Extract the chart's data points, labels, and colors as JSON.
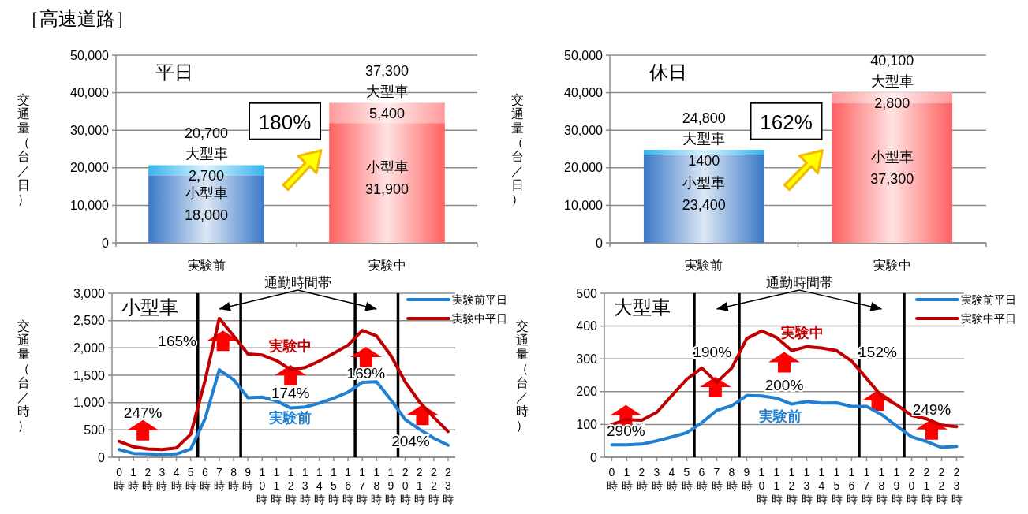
{
  "chart_data": [
    {
      "type": "bar",
      "title": "平日",
      "ylabel": "交通量（台／日）",
      "categories": [
        "実験前",
        "実験中"
      ],
      "stacked": true,
      "series": [
        {
          "name": "小型車",
          "colors": [
            "#3a78c8",
            "#ff6060"
          ],
          "values": [
            18000,
            31900
          ],
          "value_labels": [
            "18,000",
            "31,900"
          ]
        },
        {
          "name": "大型車",
          "colors": [
            "#34b4ec",
            "#ff9a9a"
          ],
          "values": [
            2700,
            5400
          ],
          "value_labels": [
            "2,700",
            "5,400"
          ]
        }
      ],
      "totals": [
        "20,700",
        "37,300"
      ],
      "ylim": [
        0,
        50000
      ],
      "yticks": [
        0,
        {
          "value": 10000,
          "label": "10,000"
        },
        {
          "value": 20000,
          "label": "20,000"
        },
        {
          "value": 30000,
          "label": "30,000"
        },
        {
          "value": 40000,
          "label": "40,000"
        },
        {
          "value": 50000,
          "label": "50,000"
        }
      ],
      "grid": "y",
      "annotations": [
        "［高速道路］",
        "180%"
      ]
    },
    {
      "type": "bar",
      "title": "休日",
      "ylabel": "交通量（台／日）",
      "categories": [
        "実験前",
        "実験中"
      ],
      "stacked": true,
      "series": [
        {
          "name": "小型車",
          "colors": [
            "#3a78c8",
            "#ff6060"
          ],
          "values": [
            23400,
            37300
          ],
          "value_labels": [
            "23,400",
            "37,300"
          ]
        },
        {
          "name": "大型車",
          "colors": [
            "#34b4ec",
            "#ff9a9a"
          ],
          "values": [
            1400,
            2800
          ],
          "value_labels": [
            "1400",
            "2,800"
          ]
        }
      ],
      "totals": [
        "24,800",
        "40,100"
      ],
      "ylim": [
        0,
        50000
      ],
      "yticks": [
        0,
        {
          "value": 10000,
          "label": "10,000"
        },
        {
          "value": 20000,
          "label": "20,000"
        },
        {
          "value": 30000,
          "label": "30,000"
        },
        {
          "value": 40000,
          "label": "40,000"
        },
        {
          "value": 50000,
          "label": "50,000"
        }
      ],
      "grid": "y",
      "annotations": [
        "162%"
      ]
    },
    {
      "type": "line",
      "title": "小型車",
      "ylabel": "交通量（台／時）",
      "x": [
        0,
        1,
        2,
        3,
        4,
        5,
        6,
        7,
        8,
        9,
        10,
        11,
        12,
        13,
        14,
        15,
        16,
        17,
        18,
        19,
        20,
        21,
        22,
        23
      ],
      "xlim": [
        -0.5,
        23.5
      ],
      "xticks": [
        {
          "value": 0,
          "label": "0時"
        },
        {
          "value": 1,
          "label": "1時"
        },
        {
          "value": 2,
          "label": "2時"
        },
        {
          "value": 3,
          "label": "3時"
        },
        {
          "value": 4,
          "label": "4時"
        },
        {
          "value": 5,
          "label": "5時"
        },
        {
          "value": 6,
          "label": "6時"
        },
        {
          "value": 7,
          "label": "7時"
        },
        {
          "value": 8,
          "label": "8時"
        },
        {
          "value": 9,
          "label": "9時"
        },
        {
          "value": 10,
          "label": "10時"
        },
        {
          "value": 11,
          "label": "11時"
        },
        {
          "value": 12,
          "label": "12時"
        },
        {
          "value": 13,
          "label": "13時"
        },
        {
          "value": 14,
          "label": "14時"
        },
        {
          "value": 15,
          "label": "15時"
        },
        {
          "value": 16,
          "label": "16時"
        },
        {
          "value": 17,
          "label": "17時"
        },
        {
          "value": 18,
          "label": "18時"
        },
        {
          "value": 19,
          "label": "19時"
        },
        {
          "value": 20,
          "label": "20時"
        },
        {
          "value": 21,
          "label": "21時"
        },
        {
          "value": 22,
          "label": "22時"
        },
        {
          "value": 23,
          "label": "23時"
        }
      ],
      "ylim": [
        0,
        3000
      ],
      "yticks": [
        0,
        500,
        {
          "value": 1000,
          "label": "1,000"
        },
        {
          "value": 1500,
          "label": "1,500"
        },
        {
          "value": 2000,
          "label": "2,000"
        },
        {
          "value": 2500,
          "label": "2,500"
        },
        {
          "value": 3000,
          "label": "3,000"
        }
      ],
      "grid": "y",
      "legend": "top right",
      "series": [
        {
          "name": "実験前平日",
          "color": "#1f7fd0",
          "values": [
            140,
            70,
            60,
            50,
            60,
            150,
            700,
            1600,
            1420,
            1090,
            1100,
            1030,
            900,
            920,
            990,
            1080,
            1190,
            1370,
            1380,
            1050,
            690,
            510,
            350,
            220
          ]
        },
        {
          "name": "実験中平日",
          "color": "#c00000",
          "values": [
            290,
            190,
            150,
            140,
            170,
            420,
            1400,
            2540,
            2220,
            1890,
            1870,
            1770,
            1600,
            1640,
            1760,
            1900,
            2050,
            2320,
            2220,
            1860,
            1380,
            1010,
            730,
            470
          ]
        }
      ],
      "ref_lines": [
        {
          "axis": "x",
          "value": 5.5,
          "color": "#000000"
        },
        {
          "axis": "x",
          "value": 8.5,
          "color": "#000000"
        },
        {
          "axis": "x",
          "value": 16.5,
          "color": "#000000"
        },
        {
          "axis": "x",
          "value": 19.5,
          "color": "#000000"
        }
      ],
      "annotations": [
        "通勤時間帯",
        "247%",
        "165%",
        "174%",
        "169%",
        "204%",
        "実験中",
        "実験前"
      ]
    },
    {
      "type": "line",
      "title": "大型車",
      "ylabel": "交通量（台／時）",
      "x": [
        0,
        1,
        2,
        3,
        4,
        5,
        6,
        7,
        8,
        9,
        10,
        11,
        12,
        13,
        14,
        15,
        16,
        17,
        18,
        19,
        20,
        21,
        22,
        23
      ],
      "xlim": [
        -0.5,
        23.5
      ],
      "xticks": [
        {
          "value": 0,
          "label": "0時"
        },
        {
          "value": 1,
          "label": "1時"
        },
        {
          "value": 2,
          "label": "2時"
        },
        {
          "value": 3,
          "label": "3時"
        },
        {
          "value": 4,
          "label": "4時"
        },
        {
          "value": 5,
          "label": "5時"
        },
        {
          "value": 6,
          "label": "6時"
        },
        {
          "value": 7,
          "label": "7時"
        },
        {
          "value": 8,
          "label": "8時"
        },
        {
          "value": 9,
          "label": "9時"
        },
        {
          "value": 10,
          "label": "10時"
        },
        {
          "value": 11,
          "label": "11時"
        },
        {
          "value": 12,
          "label": "12時"
        },
        {
          "value": 13,
          "label": "13時"
        },
        {
          "value": 14,
          "label": "14時"
        },
        {
          "value": 15,
          "label": "15時"
        },
        {
          "value": 16,
          "label": "16時"
        },
        {
          "value": 17,
          "label": "17時"
        },
        {
          "value": 18,
          "label": "18時"
        },
        {
          "value": 19,
          "label": "19時"
        },
        {
          "value": 20,
          "label": "20時"
        },
        {
          "value": 21,
          "label": "21時"
        },
        {
          "value": 22,
          "label": "22時"
        },
        {
          "value": 23,
          "label": "23時"
        }
      ],
      "ylim": [
        0,
        500
      ],
      "yticks": [
        0,
        100,
        200,
        300,
        400,
        500
      ],
      "grid": "y",
      "legend": "top right",
      "series": [
        {
          "name": "実験前平日",
          "color": "#1f7fd0",
          "values": [
            38,
            38,
            40,
            50,
            62,
            75,
            105,
            143,
            157,
            188,
            187,
            180,
            162,
            170,
            165,
            166,
            155,
            155,
            130,
            95,
            62,
            48,
            30,
            33
          ]
        },
        {
          "name": "実験中平日",
          "color": "#c00000",
          "values": [
            100,
            115,
            113,
            137,
            188,
            238,
            272,
            228,
            272,
            362,
            385,
            365,
            325,
            337,
            333,
            325,
            293,
            240,
            185,
            160,
            127,
            117,
            98,
            93
          ]
        }
      ],
      "ref_lines": [
        {
          "axis": "x",
          "value": 5.5,
          "color": "#000000"
        },
        {
          "axis": "x",
          "value": 8.5,
          "color": "#000000"
        },
        {
          "axis": "x",
          "value": 16.5,
          "color": "#000000"
        },
        {
          "axis": "x",
          "value": 19.5,
          "color": "#000000"
        }
      ],
      "annotations": [
        "通勤時間帯",
        "290%",
        "190%",
        "200%",
        "152%",
        "249%",
        "実験中",
        "実験前"
      ]
    }
  ]
}
